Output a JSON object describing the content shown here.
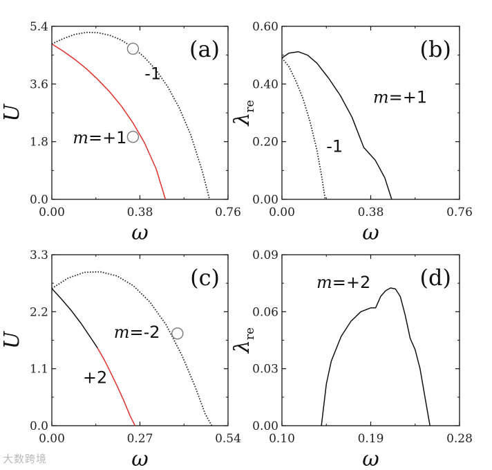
{
  "watermark": "大数跨境",
  "chart_data": [
    {
      "type": "line",
      "panel_label": "(a)",
      "xlabel": "ω",
      "ylabel": "U",
      "xlim": [
        0.0,
        0.76
      ],
      "ylim": [
        0.0,
        5.4
      ],
      "xticks": [
        "0.00",
        "0.38",
        "0.76"
      ],
      "yticks": [
        "0.0",
        "1.8",
        "3.6",
        "5.4"
      ],
      "series": [
        {
          "name": "m=+1",
          "color": "#e0302a",
          "style": "solid",
          "x": [
            0.0,
            0.05,
            0.1,
            0.15,
            0.2,
            0.25,
            0.3,
            0.35,
            0.4,
            0.45,
            0.49
          ],
          "y": [
            4.85,
            4.62,
            4.36,
            4.07,
            3.73,
            3.35,
            2.91,
            2.39,
            1.76,
            0.95,
            0.0
          ]
        },
        {
          "name": "-1",
          "color": "#222222",
          "style": "dotted",
          "x": [
            0.0,
            0.05,
            0.1,
            0.15,
            0.2,
            0.25,
            0.3,
            0.35,
            0.4,
            0.45,
            0.5,
            0.55,
            0.6,
            0.65,
            0.68
          ],
          "y": [
            4.85,
            5.02,
            5.15,
            5.21,
            5.2,
            5.12,
            4.97,
            4.74,
            4.43,
            4.03,
            3.51,
            2.85,
            2.0,
            0.85,
            0.0
          ]
        }
      ],
      "markers": [
        {
          "x": 0.35,
          "y": 4.7
        },
        {
          "x": 0.35,
          "y": 1.95
        }
      ],
      "annotations": [
        {
          "text": "-1",
          "x": 0.4,
          "y": 3.75
        },
        {
          "m": "m",
          "text": "=+1",
          "x": 0.09,
          "y": 1.75
        }
      ]
    },
    {
      "type": "line",
      "panel_label": "(b)",
      "xlabel": "ω",
      "ylabel": "λ",
      "ylabel_sub": "re",
      "xlim": [
        0.0,
        0.76
      ],
      "ylim": [
        0.0,
        0.6
      ],
      "xticks": [
        "0.00",
        "0.38",
        "0.76"
      ],
      "yticks": [
        "0.00",
        "0.20",
        "0.40",
        "0.60"
      ],
      "series": [
        {
          "name": "m=+1",
          "color": "#111111",
          "style": "solid",
          "x": [
            0.0,
            0.03,
            0.07,
            0.11,
            0.15,
            0.2,
            0.25,
            0.3,
            0.35,
            0.4,
            0.44,
            0.47
          ],
          "y": [
            0.49,
            0.507,
            0.512,
            0.5,
            0.472,
            0.42,
            0.36,
            0.285,
            0.18,
            0.135,
            0.075,
            0.0
          ]
        },
        {
          "name": "-1",
          "color": "#222222",
          "style": "dotted",
          "x": [
            0.0,
            0.03,
            0.06,
            0.09,
            0.12,
            0.15,
            0.17,
            0.185
          ],
          "y": [
            0.49,
            0.46,
            0.41,
            0.35,
            0.27,
            0.17,
            0.08,
            0.0
          ]
        }
      ],
      "annotations": [
        {
          "m": "m",
          "text": "=+1",
          "x": 0.39,
          "y": 0.335
        },
        {
          "text": "-1",
          "x": 0.19,
          "y": 0.165
        }
      ]
    },
    {
      "type": "line",
      "panel_label": "(c)",
      "xlabel": "ω",
      "ylabel": "U",
      "xlim": [
        0.0,
        0.54
      ],
      "ylim": [
        0.0,
        3.3
      ],
      "xticks": [
        "0.00",
        "0.27",
        "0.54"
      ],
      "yticks": [
        "0.0",
        "1.1",
        "2.2",
        "3.3"
      ],
      "series": [
        {
          "name": "+2",
          "color": "#111111",
          "style": "solid",
          "x": [
            0.0,
            0.03,
            0.06,
            0.09,
            0.12,
            0.14
          ],
          "y": [
            2.65,
            2.44,
            2.22,
            1.97,
            1.69,
            1.5
          ]
        },
        {
          "name": "+2 (red)",
          "color": "#e0302a",
          "style": "solid",
          "x": [
            0.14,
            0.16,
            0.18,
            0.2,
            0.22,
            0.24,
            0.255
          ],
          "y": [
            1.5,
            1.28,
            1.03,
            0.77,
            0.49,
            0.19,
            0.0
          ]
        },
        {
          "name": "m=-2",
          "color": "#222222",
          "style": "dotted",
          "x": [
            0.0,
            0.05,
            0.1,
            0.15,
            0.2,
            0.25,
            0.3,
            0.35,
            0.4,
            0.44,
            0.47,
            0.49
          ],
          "y": [
            2.65,
            2.85,
            2.96,
            2.97,
            2.89,
            2.7,
            2.39,
            1.95,
            1.34,
            0.74,
            0.23,
            0.0
          ]
        }
      ],
      "markers": [
        {
          "x": 0.385,
          "y": 1.78
        }
      ],
      "annotations": [
        {
          "m": "m",
          "text": "=-2",
          "x": 0.19,
          "y": 1.7
        },
        {
          "text": "+2",
          "x": 0.095,
          "y": 0.82
        }
      ]
    },
    {
      "type": "line",
      "panel_label": "(d)",
      "xlabel": "ω",
      "ylabel": "λ",
      "ylabel_sub": "re",
      "xlim": [
        0.1,
        0.28
      ],
      "ylim": [
        0.0,
        0.09
      ],
      "xticks": [
        "0.10",
        "0.19",
        "0.28"
      ],
      "yticks": [
        "0.00",
        "0.03",
        "0.06",
        "0.09"
      ],
      "series": [
        {
          "name": "m=+2",
          "color": "#111111",
          "style": "solid",
          "x": [
            0.14,
            0.145,
            0.15,
            0.16,
            0.17,
            0.18,
            0.19,
            0.195,
            0.2,
            0.205,
            0.21,
            0.215,
            0.22,
            0.225,
            0.23,
            0.235,
            0.24,
            0.245,
            0.25
          ],
          "y": [
            0.0,
            0.022,
            0.034,
            0.047,
            0.055,
            0.06,
            0.062,
            0.062,
            0.068,
            0.071,
            0.0725,
            0.072,
            0.068,
            0.058,
            0.046,
            0.04,
            0.03,
            0.015,
            0.0
          ]
        }
      ],
      "annotations": [
        {
          "m": "m",
          "text": "=+2",
          "x": 0.135,
          "y": 0.0725
        }
      ]
    }
  ]
}
